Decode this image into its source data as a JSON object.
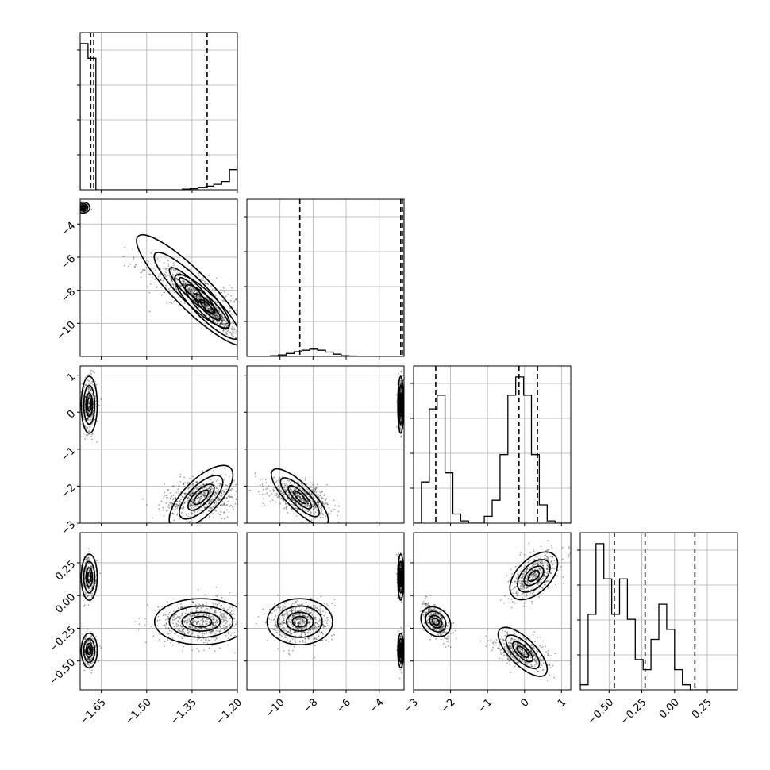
{
  "chart_data": {
    "type": "corner",
    "title": "",
    "params": [
      {
        "xlim": [
          -1.72,
          -1.2
        ],
        "ylim": null,
        "ticks": [
          -1.65,
          -1.5,
          -1.35,
          -1.2
        ],
        "tick_labels": [
          "−1.65",
          "−1.50",
          "−1.35",
          "−1.20"
        ]
      },
      {
        "xlim": [
          -12.0,
          -2.5
        ],
        "ylim": [
          -12.0,
          -2.5
        ],
        "ticks": [
          -10,
          -8,
          -6,
          -4
        ],
        "tick_labels": [
          "−10",
          "−8",
          "−6",
          "−4"
        ]
      },
      {
        "xlim": [
          -3.0,
          1.25
        ],
        "ylim": [
          -3.0,
          1.25
        ],
        "ticks": [
          -3,
          -2,
          -1,
          0,
          1
        ],
        "tick_labels": [
          "−3",
          "−2",
          "−1",
          "0",
          "1"
        ]
      },
      {
        "xlim": [
          -0.72,
          0.48
        ],
        "ylim": [
          -0.72,
          0.48
        ],
        "ticks": [
          -0.5,
          -0.25,
          0.0,
          0.25
        ],
        "tick_labels": [
          "−0.50",
          "−0.25",
          "0.00",
          "0.25"
        ]
      }
    ],
    "histograms": [
      {
        "param": 0,
        "bin_start": -1.72,
        "bin_width": 0.026,
        "counts": [
          800,
          720,
          0,
          0,
          0,
          0,
          0,
          0,
          0,
          0,
          0,
          0,
          0,
          4,
          6,
          12,
          20,
          30,
          45,
          110,
          170,
          200,
          130,
          25,
          5,
          0
        ],
        "quantiles": [
          -1.685,
          -1.675,
          -1.3
        ]
      },
      {
        "param": 1,
        "bin_start": -12.0,
        "bin_width": 0.475,
        "counts": [
          0,
          0,
          0,
          20,
          40,
          80,
          130,
          170,
          200,
          170,
          120,
          60,
          20,
          10,
          0,
          0,
          0,
          0,
          0,
          0,
          4000
        ],
        "quantiles": [
          -8.8,
          -2.7,
          -2.6
        ]
      },
      {
        "param": 2,
        "bin_start": -3.0,
        "bin_width": 0.2125,
        "counts": [
          0,
          90,
          250,
          280,
          110,
          20,
          5,
          0,
          0,
          15,
          50,
          150,
          280,
          320,
          280,
          150,
          40,
          5,
          0,
          0
        ],
        "quantiles": [
          -2.4,
          -0.15,
          0.35
        ]
      },
      {
        "param": 3,
        "bin_start": -0.72,
        "bin_width": 0.06,
        "counts": [
          10,
          150,
          290,
          220,
          150,
          220,
          140,
          60,
          40,
          100,
          170,
          120,
          40,
          10,
          0,
          0,
          0,
          0,
          0,
          0
        ],
        "quantiles": [
          -0.46,
          -0.225,
          0.155
        ]
      }
    ],
    "clusters": [
      {
        "row": 1,
        "col": 0,
        "cx": -1.71,
        "cy": -3.0,
        "sx": 0.01,
        "sy": 0.15,
        "rho": 0.0,
        "n": 120
      },
      {
        "row": 1,
        "col": 0,
        "cx": -1.35,
        "cy": -8.0,
        "sx": 0.09,
        "sy": 1.0,
        "rho": -0.8,
        "n": 380
      },
      {
        "row": 1,
        "col": 0,
        "cx": -1.3,
        "cy": -9.0,
        "sx": 0.05,
        "sy": 0.9,
        "rho": -0.95,
        "n": 700
      },
      {
        "row": 2,
        "col": 0,
        "cx": -1.69,
        "cy": 0.2,
        "sx": 0.012,
        "sy": 0.35,
        "rho": 0.0,
        "n": 450
      },
      {
        "row": 2,
        "col": 0,
        "cx": -1.32,
        "cy": -2.3,
        "sx": 0.06,
        "sy": 0.25,
        "rho": 0.2,
        "n": 700
      },
      {
        "row": 2,
        "col": 1,
        "cx": -2.7,
        "cy": 0.2,
        "sx": 0.08,
        "sy": 0.35,
        "rho": 0.0,
        "n": 450
      },
      {
        "row": 2,
        "col": 1,
        "cx": -8.8,
        "cy": -2.3,
        "sx": 0.9,
        "sy": 0.22,
        "rho": -0.5,
        "n": 700
      },
      {
        "row": 3,
        "col": 0,
        "cx": -1.69,
        "cy": 0.14,
        "sx": 0.012,
        "sy": 0.08,
        "rho": 0.0,
        "n": 300
      },
      {
        "row": 3,
        "col": 0,
        "cx": -1.69,
        "cy": -0.42,
        "sx": 0.012,
        "sy": 0.06,
        "rho": 0.0,
        "n": 280
      },
      {
        "row": 3,
        "col": 0,
        "cx": -1.32,
        "cy": -0.2,
        "sx": 0.07,
        "sy": 0.08,
        "rho": 0.0,
        "n": 700
      },
      {
        "row": 3,
        "col": 1,
        "cx": -2.7,
        "cy": 0.14,
        "sx": 0.08,
        "sy": 0.08,
        "rho": 0.0,
        "n": 300
      },
      {
        "row": 3,
        "col": 1,
        "cx": -2.7,
        "cy": -0.42,
        "sx": 0.08,
        "sy": 0.06,
        "rho": 0.0,
        "n": 280
      },
      {
        "row": 3,
        "col": 1,
        "cx": -8.8,
        "cy": -0.2,
        "sx": 0.9,
        "sy": 0.08,
        "rho": 0.0,
        "n": 700
      },
      {
        "row": 3,
        "col": 2,
        "cx": 0.25,
        "cy": 0.15,
        "sx": 0.3,
        "sy": 0.09,
        "rho": 0.6,
        "n": 500
      },
      {
        "row": 3,
        "col": 2,
        "cx": -2.4,
        "cy": -0.2,
        "sx": 0.17,
        "sy": 0.07,
        "rho": -0.6,
        "n": 400
      },
      {
        "row": 3,
        "col": 2,
        "cx": -0.05,
        "cy": -0.43,
        "sx": 0.35,
        "sy": 0.06,
        "rho": -0.4,
        "n": 500
      }
    ]
  }
}
